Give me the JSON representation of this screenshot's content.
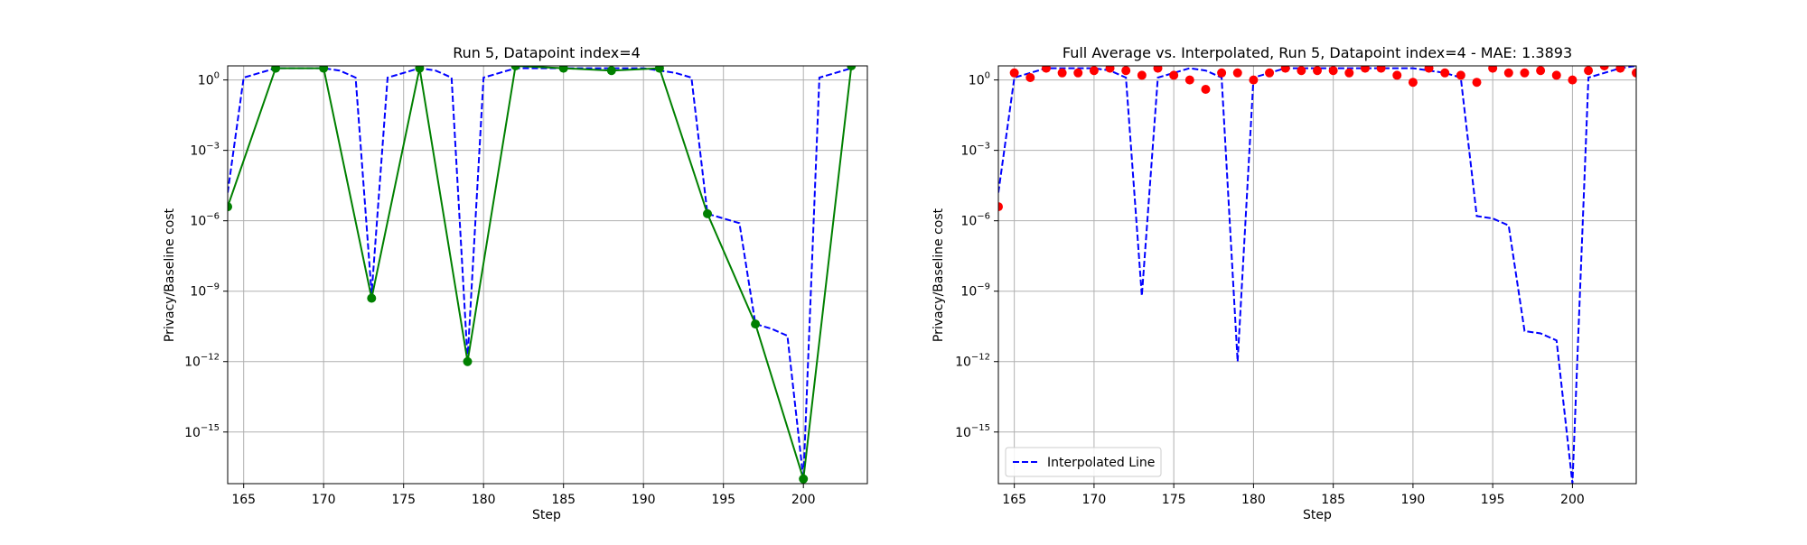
{
  "chart_data": [
    {
      "type": "line",
      "title": "Run 5, Datapoint index=4",
      "xlabel": "Step",
      "ylabel": "Privacy/Baseline cost",
      "xlim": [
        164,
        204
      ],
      "ylim_log10": [
        -17.2,
        0.6
      ],
      "yscale": "log",
      "grid": true,
      "xticks": [
        165,
        170,
        175,
        180,
        185,
        190,
        195,
        200
      ],
      "yticks": [
        {
          "exp": 0,
          "label": "10^0"
        },
        {
          "exp": -3,
          "label": "10^-3"
        },
        {
          "exp": -6,
          "label": "10^-6"
        },
        {
          "exp": -9,
          "label": "10^-9"
        },
        {
          "exp": -12,
          "label": "10^-12"
        },
        {
          "exp": -15,
          "label": "10^-15"
        }
      ],
      "series": [
        {
          "style": "dashed",
          "color": "#0000ff",
          "x": [
            164,
            165,
            166,
            167,
            168,
            169,
            170,
            171,
            172,
            173,
            174,
            175,
            176,
            177,
            178,
            179,
            180,
            181,
            182,
            183,
            184,
            185,
            186,
            187,
            188,
            189,
            190,
            191,
            192,
            193,
            194,
            195,
            196,
            197,
            198,
            199,
            200,
            201,
            202,
            203
          ],
          "log10y": [
            -4.8,
            0.1,
            0.3,
            0.5,
            0.5,
            0.5,
            0.5,
            0.4,
            0.1,
            -9.1,
            0.1,
            0.3,
            0.5,
            0.4,
            0.1,
            -11.9,
            0.1,
            0.3,
            0.5,
            0.5,
            0.5,
            0.5,
            0.5,
            0.5,
            0.5,
            0.5,
            0.5,
            0.4,
            0.3,
            0.1,
            -5.7,
            -5.9,
            -6.1,
            -10.4,
            -10.6,
            -10.9,
            -17.0,
            0.1,
            0.3,
            0.5
          ]
        },
        {
          "style": "solid-markers",
          "color": "#008000",
          "x": [
            164,
            167,
            170,
            173,
            176,
            179,
            182,
            185,
            188,
            191,
            194,
            197,
            200,
            203
          ],
          "log10y": [
            -5.4,
            0.5,
            0.5,
            -9.3,
            0.5,
            -12.0,
            0.6,
            0.5,
            0.4,
            0.5,
            -5.7,
            -10.4,
            -17.0,
            0.6
          ]
        }
      ]
    },
    {
      "type": "line",
      "title": "Full Average vs. Interpolated, Run 5, Datapoint index=4 - MAE: 1.3893",
      "xlabel": "Step",
      "ylabel": "Privacy/Baseline cost",
      "xlim": [
        164,
        204
      ],
      "ylim_log10": [
        -17.2,
        0.6
      ],
      "yscale": "log",
      "grid": true,
      "legend_position": "lower-left",
      "legend_label": "Interpolated Line",
      "xticks": [
        165,
        170,
        175,
        180,
        185,
        190,
        195,
        200
      ],
      "yticks": [
        {
          "exp": 0,
          "label": "10^0"
        },
        {
          "exp": -3,
          "label": "10^-3"
        },
        {
          "exp": -6,
          "label": "10^-6"
        },
        {
          "exp": -9,
          "label": "10^-9"
        },
        {
          "exp": -12,
          "label": "10^-12"
        },
        {
          "exp": -15,
          "label": "10^-15"
        }
      ],
      "series": [
        {
          "name": "Interpolated Line",
          "style": "dashed",
          "color": "#0000ff",
          "x": [
            164,
            165,
            166,
            167,
            168,
            169,
            170,
            171,
            172,
            173,
            174,
            175,
            176,
            177,
            178,
            179,
            180,
            181,
            182,
            183,
            184,
            185,
            186,
            187,
            188,
            189,
            190,
            191,
            192,
            193,
            194,
            195,
            196,
            197,
            198,
            199,
            200,
            201,
            202,
            203,
            204
          ],
          "log10y": [
            -4.8,
            0.1,
            0.3,
            0.5,
            0.5,
            0.5,
            0.5,
            0.4,
            0.1,
            -9.2,
            0.1,
            0.3,
            0.5,
            0.4,
            0.1,
            -12.0,
            0.1,
            0.3,
            0.5,
            0.5,
            0.5,
            0.5,
            0.5,
            0.5,
            0.5,
            0.5,
            0.5,
            0.4,
            0.3,
            0.1,
            -5.8,
            -5.9,
            -6.2,
            -10.7,
            -10.8,
            -11.1,
            -17.2,
            0.1,
            0.3,
            0.5,
            0.6
          ]
        },
        {
          "style": "scatter",
          "color": "#ff0000",
          "x": [
            164,
            165,
            166,
            167,
            168,
            169,
            170,
            171,
            172,
            173,
            174,
            175,
            176,
            177,
            178,
            179,
            180,
            181,
            182,
            183,
            184,
            185,
            186,
            187,
            188,
            189,
            190,
            191,
            192,
            193,
            194,
            195,
            196,
            197,
            198,
            199,
            200,
            201,
            202,
            203,
            204
          ],
          "log10y": [
            -5.4,
            0.3,
            0.1,
            0.5,
            0.3,
            0.3,
            0.4,
            0.5,
            0.4,
            0.2,
            0.5,
            0.2,
            0.0,
            -0.4,
            0.3,
            0.3,
            0.0,
            0.3,
            0.5,
            0.4,
            0.4,
            0.4,
            0.3,
            0.5,
            0.5,
            0.2,
            -0.1,
            0.5,
            0.3,
            0.2,
            -0.1,
            0.5,
            0.3,
            0.3,
            0.4,
            0.2,
            0.0,
            0.4,
            0.6,
            0.5,
            0.3
          ]
        }
      ]
    }
  ]
}
